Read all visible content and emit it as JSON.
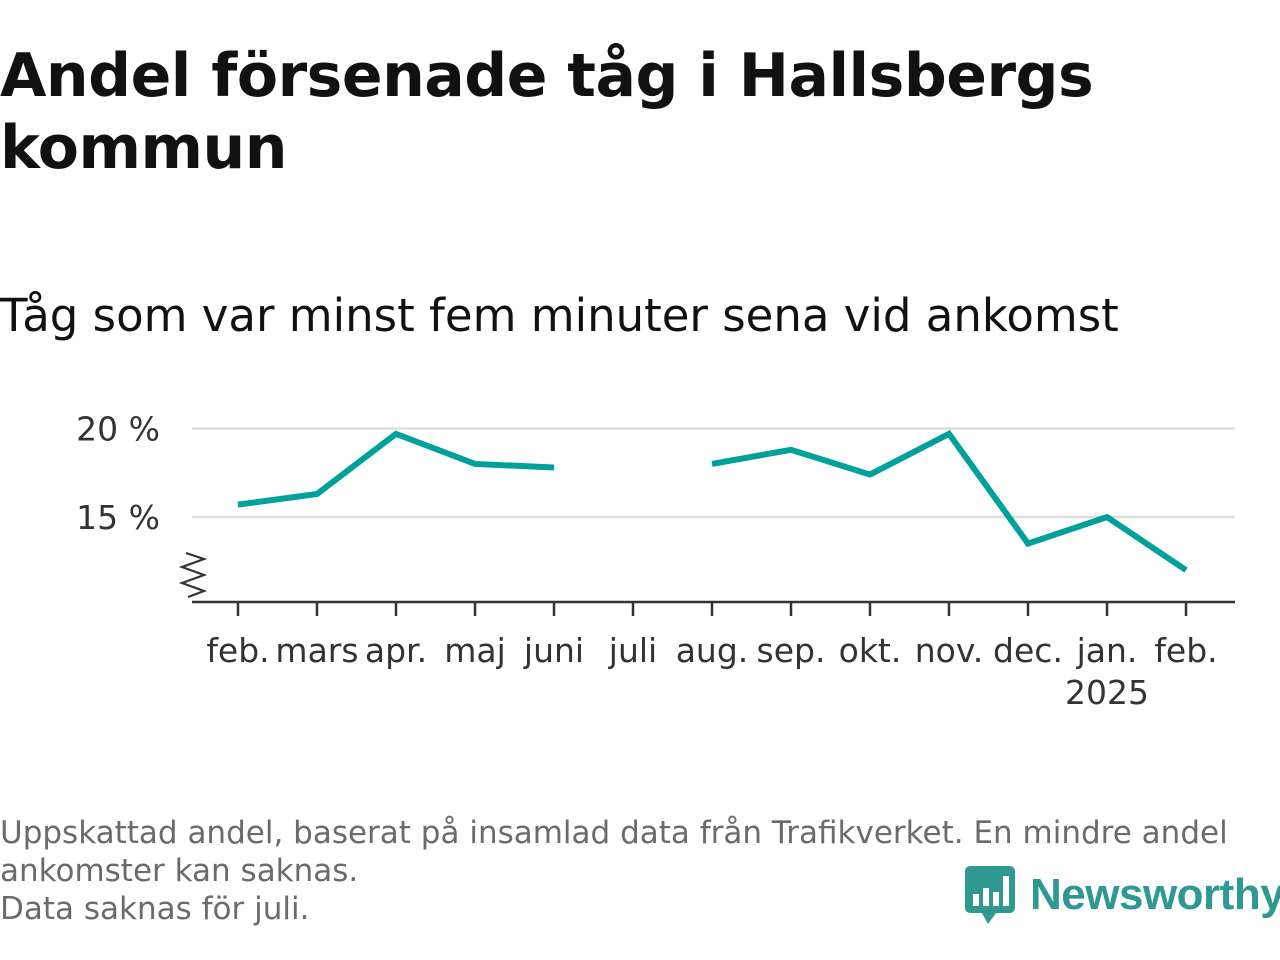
{
  "title": "Andel försenade tåg i Hallsbergs kommun",
  "subtitle": "Tåg som var minst fem minuter sena vid ankomst",
  "footnote": {
    "line1": "Uppskattad andel, baserat på insamlad data från Trafikverket. En mindre andel",
    "line2": "ankomster kan saknas.",
    "line3": "Data saknas för juli."
  },
  "logo": {
    "text": "Newsworthy",
    "icon": "newsworthy-chart-badge-icon",
    "color": "#2e9891"
  },
  "chart_data": {
    "type": "line",
    "categories": [
      "feb.",
      "mars",
      "apr.",
      "maj",
      "juni",
      "juli",
      "aug.",
      "sep.",
      "okt.",
      "nov.",
      "dec.",
      "jan.",
      "feb."
    ],
    "year_label": {
      "text": "2025",
      "under_category_index": 11
    },
    "series": [
      {
        "color": "#00a19a",
        "values": [
          15.7,
          16.3,
          19.7,
          18.0,
          17.8,
          null,
          18.0,
          18.8,
          17.4,
          19.7,
          13.5,
          15.0,
          12.0
        ]
      }
    ],
    "yticks": [
      15,
      20
    ],
    "ytick_labels": [
      "15 %",
      "20 %"
    ],
    "ylim": [
      10.2,
      20.2
    ],
    "y_axis_break": true,
    "grid": true,
    "legend": false,
    "colors": {
      "grid": "#dddddd",
      "axis": "#333333",
      "text": "#333333"
    }
  }
}
